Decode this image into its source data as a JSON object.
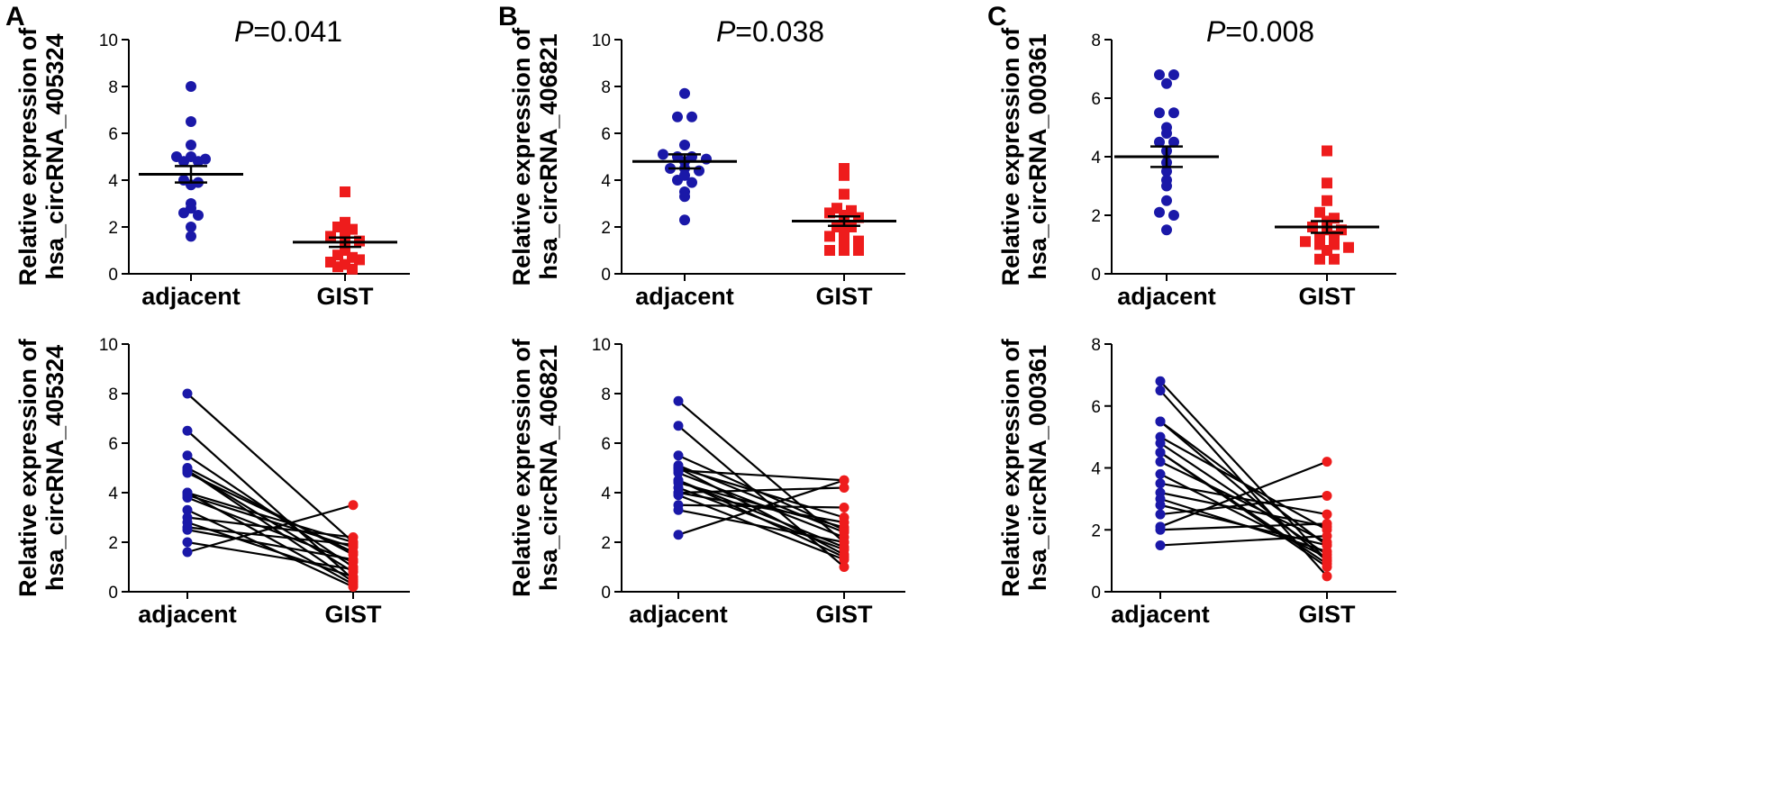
{
  "colors": {
    "adjacent": "#1a18a8",
    "gist": "#ee1c1c",
    "axis": "#000000"
  },
  "chart_data": [
    {
      "panel": "A",
      "type": "scatter",
      "title_prefix": "P",
      "title_value": "=0.041",
      "ylabel_line1": "Relative expression of",
      "ylabel_line2": "hsa_circRNA_405324",
      "categories": [
        "adjacent",
        "GIST"
      ],
      "ylim": [
        0,
        10
      ],
      "yticks": [
        0,
        2,
        4,
        6,
        8,
        10
      ],
      "tick_labels": [
        "0",
        "2",
        "4",
        "6",
        "8",
        "10"
      ],
      "series": [
        {
          "name": "adjacent",
          "marker": "circle",
          "mean": 4.25,
          "sem": 0.35,
          "values": [
            8.0,
            6.5,
            5.5,
            5.0,
            5.0,
            4.9,
            4.8,
            4.8,
            4.0,
            3.9,
            3.8,
            3.0,
            2.8,
            2.6,
            2.5,
            2.0,
            1.6
          ]
        },
        {
          "name": "GIST",
          "marker": "square",
          "mean": 1.35,
          "sem": 0.2,
          "values": [
            3.5,
            2.2,
            2.0,
            1.9,
            1.8,
            1.6,
            1.5,
            1.2,
            1.0,
            0.8,
            0.7,
            0.5,
            0.4,
            0.3,
            0.2,
            0.6,
            1.4
          ]
        }
      ]
    },
    {
      "panel": "B",
      "type": "scatter",
      "title_prefix": "P",
      "title_value": "=0.038",
      "ylabel_line1": "Relative expression of",
      "ylabel_line2": "hsa_circRNA_406821",
      "categories": [
        "adjacent",
        "GIST"
      ],
      "ylim": [
        0,
        10
      ],
      "yticks": [
        0,
        2,
        4,
        6,
        8,
        10
      ],
      "tick_labels": [
        "0",
        "2",
        "4",
        "6",
        "8",
        "10"
      ],
      "series": [
        {
          "name": "adjacent",
          "marker": "circle",
          "mean": 4.8,
          "sem": 0.3,
          "values": [
            7.7,
            6.7,
            6.7,
            5.5,
            5.1,
            5.0,
            5.0,
            4.9,
            4.8,
            4.5,
            4.5,
            4.4,
            4.0,
            3.9,
            3.5,
            3.3,
            2.3,
            4.2
          ]
        },
        {
          "name": "GIST",
          "marker": "square",
          "mean": 2.25,
          "sem": 0.2,
          "values": [
            4.5,
            4.2,
            3.4,
            2.8,
            2.7,
            2.6,
            2.5,
            2.4,
            2.2,
            2.0,
            2.0,
            1.8,
            1.6,
            1.5,
            1.4,
            1.3,
            1.0,
            1.0,
            1.0
          ]
        }
      ]
    },
    {
      "panel": "C",
      "type": "scatter",
      "title_prefix": "P",
      "title_value": "=0.008",
      "ylabel_line1": "Relative expression of",
      "ylabel_line2": "hsa_circRNA_000361",
      "categories": [
        "adjacent",
        "GIST"
      ],
      "ylim": [
        0,
        8
      ],
      "yticks": [
        0,
        2,
        4,
        6,
        8
      ],
      "tick_labels": [
        "0",
        "2",
        "4",
        "6",
        "8"
      ],
      "series": [
        {
          "name": "adjacent",
          "marker": "circle",
          "mean": 4.0,
          "sem": 0.35,
          "values": [
            6.8,
            6.8,
            6.5,
            5.5,
            5.0,
            4.8,
            4.5,
            4.5,
            4.2,
            3.8,
            3.5,
            3.0,
            2.5,
            2.1,
            2.0,
            1.5,
            3.2,
            5.5
          ]
        },
        {
          "name": "GIST",
          "marker": "square",
          "mean": 1.6,
          "sem": 0.2,
          "values": [
            4.2,
            3.1,
            2.5,
            2.1,
            1.9,
            1.8,
            1.6,
            1.5,
            1.5,
            1.2,
            1.1,
            1.0,
            1.0,
            0.9,
            0.8,
            0.5,
            0.5,
            1.3
          ]
        }
      ]
    },
    {
      "panel": "A-paired",
      "type": "line",
      "ylabel_line1": "Relative expression of",
      "ylabel_line2": "hsa_circRNA_405324",
      "categories": [
        "adjacent",
        "GIST"
      ],
      "ylim": [
        0,
        10
      ],
      "yticks": [
        0,
        2,
        4,
        6,
        8,
        10
      ],
      "tick_labels": [
        "0",
        "2",
        "4",
        "6",
        "8",
        "10"
      ],
      "pairs": [
        [
          8.0,
          2.0
        ],
        [
          6.5,
          0.5
        ],
        [
          5.5,
          1.0
        ],
        [
          5.0,
          1.5
        ],
        [
          4.9,
          0.8
        ],
        [
          4.8,
          1.6
        ],
        [
          4.0,
          0.3
        ],
        [
          3.9,
          1.8
        ],
        [
          3.8,
          1.2
        ],
        [
          3.0,
          2.2
        ],
        [
          2.8,
          0.6
        ],
        [
          2.6,
          1.9
        ],
        [
          2.5,
          1.3
        ],
        [
          2.0,
          0.9
        ],
        [
          1.6,
          3.5
        ],
        [
          4.9,
          0.4
        ],
        [
          4.0,
          2.0
        ],
        [
          3.3,
          0.2
        ]
      ]
    },
    {
      "panel": "B-paired",
      "type": "line",
      "ylabel_line1": "Relative expression of",
      "ylabel_line2": "hsa_circRNA_406821",
      "categories": [
        "adjacent",
        "GIST"
      ],
      "ylim": [
        0,
        10
      ],
      "yticks": [
        0,
        2,
        4,
        6,
        8,
        10
      ],
      "tick_labels": [
        "0",
        "2",
        "4",
        "6",
        "8",
        "10"
      ],
      "pairs": [
        [
          7.7,
          2.0
        ],
        [
          6.7,
          1.0
        ],
        [
          5.5,
          2.5
        ],
        [
          5.0,
          1.5
        ],
        [
          5.0,
          3.0
        ],
        [
          4.9,
          4.5
        ],
        [
          4.8,
          2.2
        ],
        [
          4.5,
          1.8
        ],
        [
          4.4,
          2.6
        ],
        [
          4.0,
          4.2
        ],
        [
          4.0,
          2.8
        ],
        [
          3.9,
          1.3
        ],
        [
          3.5,
          3.4
        ],
        [
          3.3,
          2.0
        ],
        [
          2.3,
          4.5
        ],
        [
          4.2,
          1.7
        ],
        [
          4.5,
          1.4
        ],
        [
          5.1,
          2.4
        ]
      ]
    },
    {
      "panel": "C-paired",
      "type": "line",
      "ylabel_line1": "Relative expression of",
      "ylabel_line2": "hsa_circRNA_000361",
      "categories": [
        "adjacent",
        "GIST"
      ],
      "ylim": [
        0,
        8
      ],
      "yticks": [
        0,
        2,
        4,
        6,
        8
      ],
      "tick_labels": [
        "0",
        "2",
        "4",
        "6",
        "8"
      ],
      "pairs": [
        [
          6.8,
          1.0
        ],
        [
          6.5,
          0.5
        ],
        [
          5.5,
          1.5
        ],
        [
          5.0,
          2.0
        ],
        [
          4.8,
          1.2
        ],
        [
          4.5,
          0.8
        ],
        [
          4.2,
          1.6
        ],
        [
          3.8,
          1.1
        ],
        [
          3.5,
          2.5
        ],
        [
          3.0,
          1.3
        ],
        [
          2.5,
          3.1
        ],
        [
          2.1,
          4.2
        ],
        [
          2.0,
          2.2
        ],
        [
          1.5,
          1.8
        ],
        [
          2.8,
          1.5
        ],
        [
          4.5,
          0.9
        ],
        [
          5.5,
          1.0
        ],
        [
          3.2,
          2.1
        ]
      ]
    }
  ]
}
